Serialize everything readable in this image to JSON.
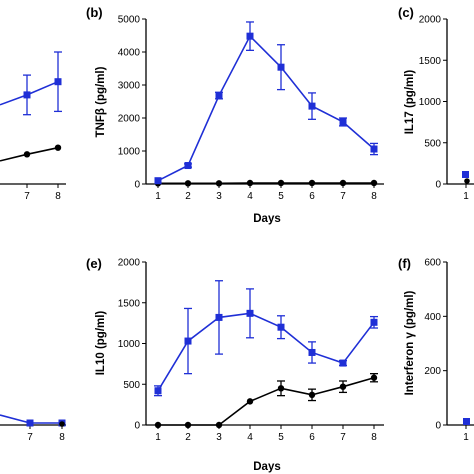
{
  "colors": {
    "series_blue": "#1f2fd6",
    "series_black": "#000000",
    "axis": "#000000"
  },
  "chart_data": [
    {
      "type": "line",
      "panel_label": "",
      "x": [
        7,
        8
      ],
      "x_tick_labels": [
        "7",
        "8"
      ],
      "series": [
        {
          "color": "blue",
          "marker": "square",
          "values": [
            null,
            null
          ],
          "partial_note": ""
        }
      ],
      "blue_values": [
        57,
        61
      ],
      "blue_err": [
        6,
        9
      ],
      "black_values": [
        39,
        41
      ],
      "black_err": [
        0,
        0
      ],
      "ylim": [
        30,
        80
      ],
      "xlabel": "",
      "ylabel": ""
    },
    {
      "type": "line",
      "panel_label": "(b)",
      "x": [
        1,
        2,
        3,
        4,
        5,
        6,
        7,
        8
      ],
      "x_tick_labels": [
        "1",
        "2",
        "3",
        "4",
        "5",
        "6",
        "7",
        "8"
      ],
      "y_ticks": [
        0,
        1000,
        2000,
        3000,
        4000,
        5000
      ],
      "y_tick_labels": [
        "0",
        "1000",
        "2000",
        "3000",
        "4000",
        "5000"
      ],
      "blue_values": [
        100,
        560,
        2680,
        4480,
        3540,
        2360,
        1880,
        1060
      ],
      "blue_err": [
        0,
        50,
        100,
        430,
        680,
        400,
        120,
        170
      ],
      "black_values": [
        20,
        20,
        20,
        30,
        30,
        30,
        30,
        30
      ],
      "black_err": [
        0,
        0,
        0,
        0,
        0,
        0,
        0,
        0
      ],
      "ylim": [
        0,
        5000
      ],
      "xlabel": "Days",
      "ylabel": "TNFβ (pg/ml)"
    },
    {
      "type": "line",
      "panel_label": "(c)",
      "y_ticks": [
        0,
        500,
        1000,
        1500,
        2000
      ],
      "y_tick_labels": [
        "0",
        "500",
        "1000",
        "1500",
        "2000"
      ],
      "ylim": [
        0,
        2000
      ],
      "visible_x_tick_labels": [
        "1"
      ],
      "xlabel": "",
      "ylabel": "IL17 (pg/ml)"
    },
    {
      "type": "line",
      "panel_label": "",
      "x_tick_labels": [
        "6",
        "7",
        "8"
      ],
      "xlabel": "",
      "ylabel": ""
    },
    {
      "type": "line",
      "panel_label": "(e)",
      "x": [
        1,
        2,
        3,
        4,
        5,
        6,
        7,
        8
      ],
      "x_tick_labels": [
        "1",
        "2",
        "3",
        "4",
        "5",
        "6",
        "7",
        "8"
      ],
      "y_ticks": [
        0,
        500,
        1000,
        1500,
        2000
      ],
      "y_tick_labels": [
        "0",
        "500",
        "1000",
        "1500",
        "2000"
      ],
      "blue_values": [
        420,
        1030,
        1320,
        1370,
        1200,
        890,
        760,
        1260
      ],
      "blue_err": [
        60,
        400,
        450,
        300,
        140,
        130,
        30,
        70
      ],
      "black_values": [
        0,
        0,
        0,
        290,
        450,
        370,
        470,
        580
      ],
      "black_err": [
        0,
        0,
        0,
        0,
        90,
        70,
        70,
        50
      ],
      "ylim": [
        0,
        2000
      ],
      "xlabel": "Days",
      "ylabel": "IL10 (pg/ml)"
    },
    {
      "type": "line",
      "panel_label": "(f)",
      "y_ticks": [
        0,
        200,
        400,
        600
      ],
      "y_tick_labels": [
        "0",
        "200",
        "400",
        "600"
      ],
      "ylim": [
        0,
        600
      ],
      "visible_x_tick_labels": [
        "1"
      ],
      "xlabel": "",
      "ylabel": "Interferon γ (pg/ml)"
    }
  ]
}
